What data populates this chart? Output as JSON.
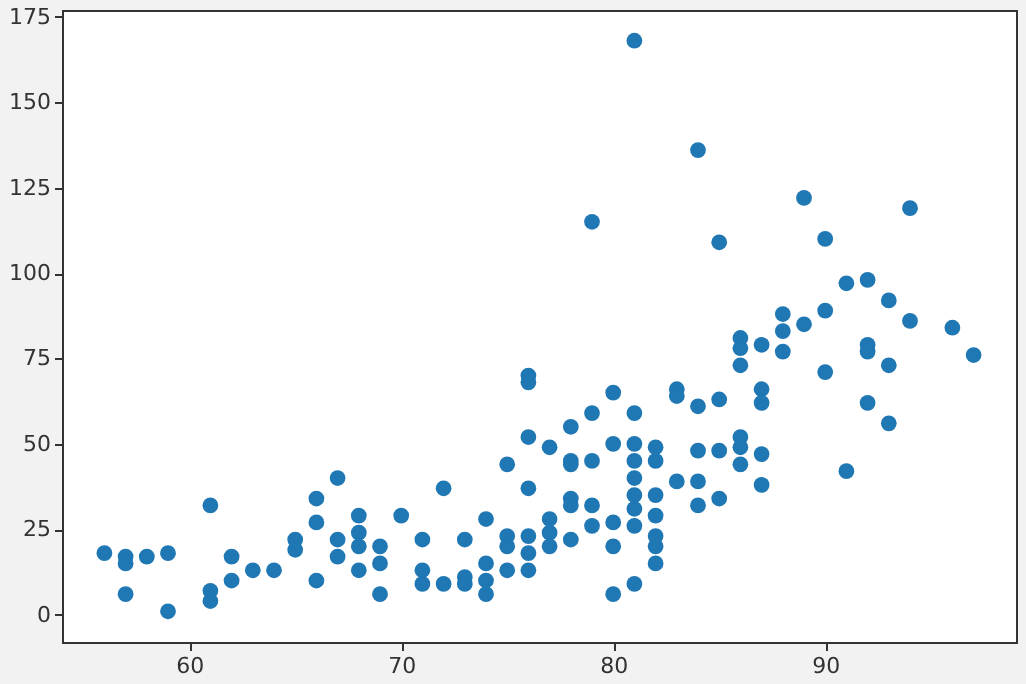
{
  "chart_data": {
    "type": "scatter",
    "x": [
      56,
      57,
      57,
      57,
      58,
      59,
      59,
      61,
      61,
      61,
      62,
      62,
      63,
      64,
      65,
      65,
      66,
      66,
      66,
      67,
      67,
      67,
      68,
      68,
      68,
      68,
      69,
      69,
      69,
      70,
      71,
      71,
      71,
      72,
      72,
      73,
      73,
      73,
      74,
      74,
      74,
      74,
      75,
      75,
      75,
      75,
      76,
      76,
      76,
      76,
      76,
      76,
      76,
      77,
      77,
      77,
      77,
      78,
      78,
      78,
      78,
      78,
      78,
      79,
      79,
      79,
      79,
      79,
      80,
      80,
      80,
      80,
      80,
      81,
      81,
      81,
      81,
      81,
      81,
      81,
      81,
      81,
      82,
      82,
      82,
      82,
      82,
      82,
      82,
      83,
      83,
      83,
      84,
      84,
      84,
      84,
      84,
      85,
      85,
      85,
      85,
      86,
      86,
      86,
      86,
      86,
      86,
      87,
      87,
      87,
      87,
      87,
      88,
      88,
      88,
      89,
      89,
      90,
      90,
      90,
      91,
      91,
      92,
      92,
      92,
      92,
      93,
      93,
      93,
      94,
      94,
      96,
      97
    ],
    "series": [
      {
        "color": "#1f77b4",
        "values": [
          18,
          17,
          15,
          6,
          17,
          18,
          1,
          32,
          7,
          4,
          17,
          10,
          13,
          13,
          22,
          19,
          34,
          27,
          10,
          40,
          22,
          17,
          29,
          24,
          20,
          13,
          20,
          15,
          6,
          29,
          22,
          13,
          9,
          37,
          9,
          22,
          11,
          9,
          28,
          15,
          10,
          6,
          44,
          23,
          20,
          13,
          70,
          68,
          52,
          37,
          23,
          18,
          13,
          49,
          28,
          24,
          20,
          55,
          45,
          44,
          34,
          32,
          22,
          115,
          59,
          45,
          32,
          26,
          65,
          50,
          27,
          20,
          6,
          168,
          59,
          50,
          45,
          40,
          35,
          31,
          26,
          9,
          49,
          45,
          35,
          29,
          23,
          20,
          15,
          66,
          64,
          39,
          136,
          61,
          48,
          39,
          32,
          109,
          63,
          48,
          34,
          81,
          78,
          73,
          52,
          49,
          44,
          79,
          66,
          62,
          47,
          38,
          88,
          83,
          77,
          122,
          85,
          110,
          89,
          71,
          97,
          42,
          98,
          79,
          77,
          62,
          92,
          73,
          56,
          119,
          86,
          84,
          76
        ]
      }
    ],
    "xlim": [
      54,
      99
    ],
    "xticks": [
      60,
      70,
      80,
      90
    ],
    "ylim": [
      -8,
      177
    ],
    "yticks": [
      0,
      25,
      50,
      75,
      100,
      125,
      150,
      175
    ],
    "marker": "circle",
    "grid": false
  }
}
